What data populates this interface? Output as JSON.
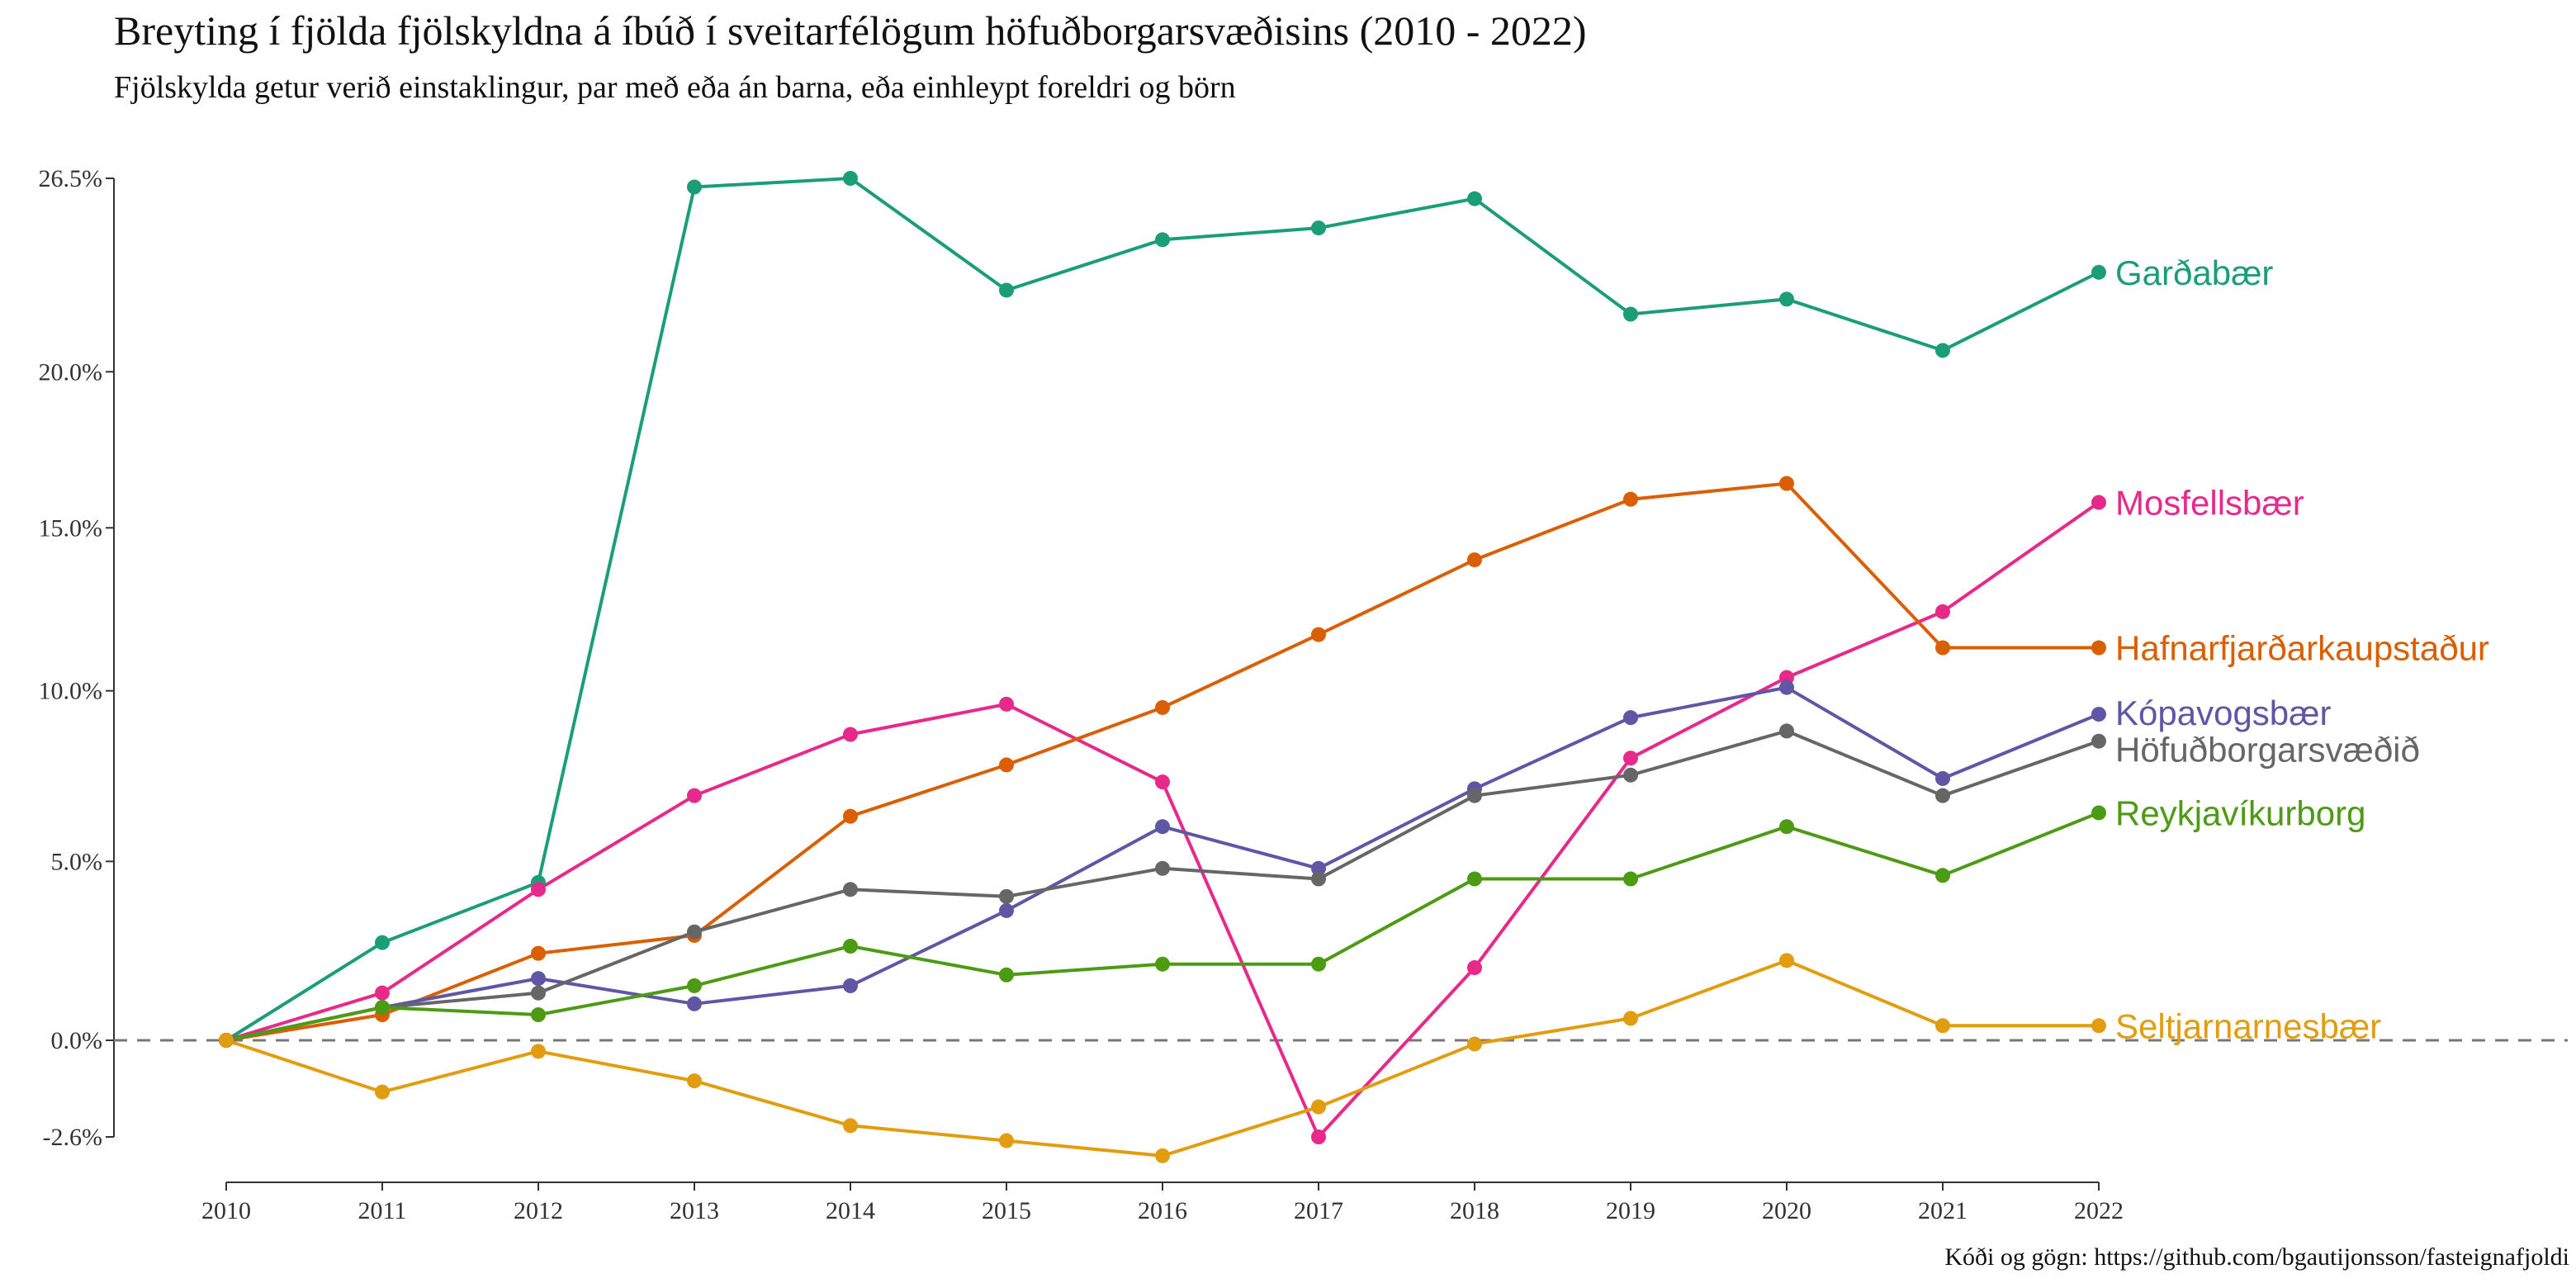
{
  "chart_data": {
    "type": "line",
    "title": "Breyting í fjölda fjölskyldna á íbúð í sveitarfélögum höfuðborgarsvæðisins (2010 - 2022)",
    "subtitle": "Fjölskylda getur verið einstaklingur, par með eða án barna, eða einhleypt foreldri og börn",
    "caption": "Kóði og gögn: https://github.com/bgautijonsson/fasteignafjoldi",
    "xlabel": "",
    "ylabel": "",
    "x": [
      2010,
      2011,
      2012,
      2013,
      2014,
      2015,
      2016,
      2017,
      2018,
      2019,
      2020,
      2021,
      2022
    ],
    "y_ticks": [
      -2.6,
      0.0,
      5.0,
      10.0,
      15.0,
      20.0,
      26.5
    ],
    "y_tick_labels": [
      "-2.6%",
      "0.0%",
      "5.0%",
      "10.0%",
      "15.0%",
      "20.0%",
      "26.5%"
    ],
    "y_scale": "log(1+x)",
    "ylim": [
      -2.6,
      26.5
    ],
    "reference_line": 0.0,
    "grid": false,
    "legend": "direct labels at line ends",
    "series": [
      {
        "name": "Garðabær",
        "color": "#1B9E77",
        "values": [
          0.0,
          2.7,
          4.4,
          26.2,
          26.5,
          22.7,
          24.4,
          24.8,
          25.8,
          21.9,
          22.4,
          20.7,
          23.3
        ]
      },
      {
        "name": "Mosfellsbær",
        "color": "#E7298A",
        "values": [
          0.0,
          1.3,
          4.2,
          6.9,
          8.7,
          9.6,
          7.3,
          -2.6,
          2.0,
          8.0,
          10.4,
          12.4,
          15.8
        ]
      },
      {
        "name": "Hafnarfjarðarkaupstaður",
        "color": "#D95F02",
        "values": [
          0.0,
          0.7,
          2.4,
          2.9,
          6.3,
          7.8,
          9.5,
          11.7,
          14.0,
          15.9,
          16.4,
          11.3,
          11.3
        ]
      },
      {
        "name": "Kópavogsbær",
        "color": "#5F56A5",
        "values": [
          0.0,
          0.9,
          1.7,
          1.0,
          1.5,
          3.6,
          6.0,
          4.8,
          7.1,
          9.2,
          10.1,
          7.4,
          9.3
        ]
      },
      {
        "name": "Höfuðborgarsvæðið",
        "color": "#666666",
        "values": [
          0.0,
          0.9,
          1.3,
          3.0,
          4.2,
          4.0,
          4.8,
          4.5,
          6.9,
          7.5,
          8.8,
          6.9,
          8.5
        ]
      },
      {
        "name": "Reykjavíkurborg",
        "color": "#4D9A15",
        "values": [
          0.0,
          0.9,
          0.7,
          1.5,
          2.6,
          1.8,
          2.1,
          2.1,
          4.5,
          4.5,
          6.0,
          4.6,
          6.4
        ]
      },
      {
        "name": "Seltjarnarnesbær",
        "color": "#E19D0F",
        "values": [
          0.0,
          -1.4,
          -0.3,
          -1.1,
          -2.3,
          -2.7,
          -3.1,
          -1.8,
          -0.1,
          0.6,
          2.2,
          0.4,
          0.4
        ]
      }
    ]
  }
}
